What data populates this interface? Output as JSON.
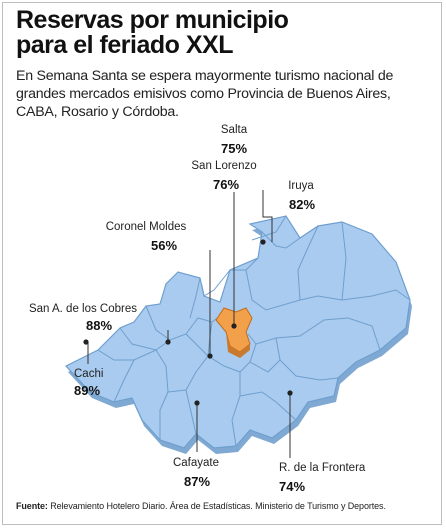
{
  "header": {
    "title_line1": "Reservas por municipio",
    "title_line2": "para el feriado XXL",
    "subtitle_line1": "En Semana Santa se espera mayormente turismo nacional de",
    "subtitle_line2": "grandes mercados emisivos como Provincia de Buenos Aires,",
    "subtitle_line3": "CABA, Rosario y Córdoba."
  },
  "map": {
    "region_color": "#a9cbef",
    "border_color": "#6f9fce",
    "shadow_color": "#7fa9d3",
    "highlight_color": "#f3a04a",
    "municipalities": [
      {
        "name": "Salta",
        "value": "75%"
      },
      {
        "name": "San Lorenzo",
        "value": "76%"
      },
      {
        "name": "Iruya",
        "value": "82%"
      },
      {
        "name": "Coronel Moldes",
        "value": "56%"
      },
      {
        "name": "San A. de los Cobres",
        "value": "88%"
      },
      {
        "name": "Cachi",
        "value": "89%"
      },
      {
        "name": "Cafayate",
        "value": "87%"
      },
      {
        "name": "R. de la Frontera",
        "value": "74%"
      }
    ]
  },
  "footer": {
    "source_label": "Fuente:",
    "source_text": " Relevamiento Hotelero Diario. Área de Estadísticas. Ministerio de Turismo y Deportes."
  }
}
